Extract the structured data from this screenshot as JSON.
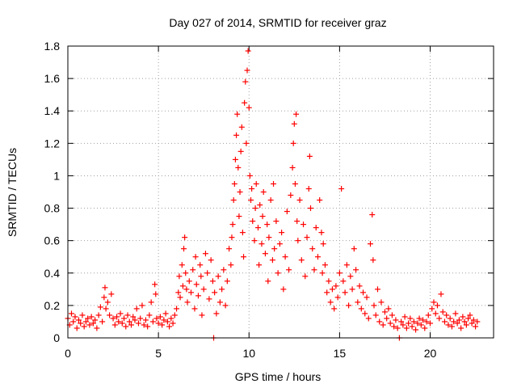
{
  "chart_data": {
    "type": "scatter",
    "title": "Day 027 of 2014, SRMTID for receiver graz",
    "xlabel": "GPS time / hours",
    "ylabel": "SRMTID / TECUs",
    "xlim": [
      0,
      23.5
    ],
    "ylim": [
      0,
      1.8
    ],
    "xticks": [
      0,
      5,
      10,
      15,
      20
    ],
    "xtick_labels": [
      "0",
      "5",
      "10",
      "15",
      "20"
    ],
    "yticks": [
      0,
      0.2,
      0.4,
      0.6,
      0.8,
      1,
      1.2,
      1.4,
      1.6,
      1.8
    ],
    "ytick_labels": [
      "0",
      "0.2",
      "0.4",
      "0.6",
      "0.8",
      "1",
      "1.2",
      "1.4",
      "1.6",
      "1.8"
    ],
    "grid": true,
    "marker": "+",
    "color": "#ff0000",
    "series": [
      {
        "name": "SRMTID",
        "points": [
          [
            0.0,
            0.12
          ],
          [
            0.1,
            0.08
          ],
          [
            0.2,
            0.15
          ],
          [
            0.3,
            0.1
          ],
          [
            0.4,
            0.13
          ],
          [
            0.5,
            0.06
          ],
          [
            0.6,
            0.11
          ],
          [
            0.7,
            0.09
          ],
          [
            0.8,
            0.14
          ],
          [
            0.9,
            0.07
          ],
          [
            1.0,
            0.1
          ],
          [
            1.1,
            0.12
          ],
          [
            1.2,
            0.08
          ],
          [
            1.3,
            0.13
          ],
          [
            1.4,
            0.09
          ],
          [
            1.5,
            0.11
          ],
          [
            1.6,
            0.06
          ],
          [
            1.7,
            0.14
          ],
          [
            1.8,
            0.19
          ],
          [
            1.9,
            0.1
          ],
          [
            2.0,
            0.25
          ],
          [
            2.05,
            0.31
          ],
          [
            2.1,
            0.18
          ],
          [
            2.2,
            0.22
          ],
          [
            2.3,
            0.14
          ],
          [
            2.4,
            0.27
          ],
          [
            2.5,
            0.12
          ],
          [
            2.6,
            0.08
          ],
          [
            2.7,
            0.13
          ],
          [
            2.8,
            0.1
          ],
          [
            2.9,
            0.15
          ],
          [
            3.0,
            0.09
          ],
          [
            3.1,
            0.12
          ],
          [
            3.2,
            0.07
          ],
          [
            3.3,
            0.14
          ],
          [
            3.4,
            0.1
          ],
          [
            3.5,
            0.08
          ],
          [
            3.6,
            0.13
          ],
          [
            3.7,
            0.11
          ],
          [
            3.8,
            0.18
          ],
          [
            3.9,
            0.09
          ],
          [
            4.0,
            0.12
          ],
          [
            4.1,
            0.2
          ],
          [
            4.2,
            0.08
          ],
          [
            4.3,
            0.11
          ],
          [
            4.4,
            0.07
          ],
          [
            4.5,
            0.14
          ],
          [
            4.6,
            0.22
          ],
          [
            4.7,
            0.1
          ],
          [
            4.8,
            0.33
          ],
          [
            4.85,
            0.27
          ],
          [
            4.9,
            0.12
          ],
          [
            5.0,
            0.09
          ],
          [
            5.1,
            0.13
          ],
          [
            5.2,
            0.08
          ],
          [
            5.3,
            0.11
          ],
          [
            5.4,
            0.15
          ],
          [
            5.5,
            0.1
          ],
          [
            5.6,
            0.07
          ],
          [
            5.7,
            0.12
          ],
          [
            5.8,
            0.09
          ],
          [
            5.9,
            0.14
          ],
          [
            6.0,
            0.18
          ],
          [
            6.1,
            0.28
          ],
          [
            6.15,
            0.38
          ],
          [
            6.2,
            0.25
          ],
          [
            6.3,
            0.45
          ],
          [
            6.35,
            0.32
          ],
          [
            6.4,
            0.55
          ],
          [
            6.45,
            0.62
          ],
          [
            6.5,
            0.4
          ],
          [
            6.55,
            0.3
          ],
          [
            6.6,
            0.22
          ],
          [
            6.7,
            0.35
          ],
          [
            6.8,
            0.28
          ],
          [
            6.9,
            0.42
          ],
          [
            7.0,
            0.18
          ],
          [
            7.05,
            0.5
          ],
          [
            7.1,
            0.33
          ],
          [
            7.2,
            0.26
          ],
          [
            7.3,
            0.45
          ],
          [
            7.35,
            0.38
          ],
          [
            7.4,
            0.14
          ],
          [
            7.5,
            0.3
          ],
          [
            7.6,
            0.52
          ],
          [
            7.7,
            0.4
          ],
          [
            7.8,
            0.24
          ],
          [
            7.9,
            0.48
          ],
          [
            8.0,
            0.35
          ],
          [
            8.05,
            0.0
          ],
          [
            8.1,
            0.28
          ],
          [
            8.2,
            0.15
          ],
          [
            8.3,
            0.38
          ],
          [
            8.4,
            0.22
          ],
          [
            8.5,
            0.3
          ],
          [
            8.6,
            0.42
          ],
          [
            8.7,
            0.2
          ],
          [
            8.8,
            0.35
          ],
          [
            8.9,
            0.55
          ],
          [
            9.0,
            0.45
          ],
          [
            9.05,
            0.62
          ],
          [
            9.1,
            0.7
          ],
          [
            9.15,
            0.85
          ],
          [
            9.2,
            0.95
          ],
          [
            9.25,
            1.1
          ],
          [
            9.3,
            1.25
          ],
          [
            9.35,
            1.38
          ],
          [
            9.4,
            1.05
          ],
          [
            9.45,
            0.75
          ],
          [
            9.5,
            0.9
          ],
          [
            9.55,
            1.15
          ],
          [
            9.6,
            1.3
          ],
          [
            9.65,
            0.65
          ],
          [
            9.7,
            0.5
          ],
          [
            9.75,
            1.45
          ],
          [
            9.8,
            1.58
          ],
          [
            9.85,
            1.2
          ],
          [
            9.9,
            1.65
          ],
          [
            9.95,
            1.77
          ],
          [
            10.0,
            1.42
          ],
          [
            10.05,
            1.0
          ],
          [
            10.1,
            0.85
          ],
          [
            10.15,
            0.92
          ],
          [
            10.2,
            0.72
          ],
          [
            10.3,
            0.6
          ],
          [
            10.35,
            0.8
          ],
          [
            10.4,
            0.95
          ],
          [
            10.5,
            0.68
          ],
          [
            10.55,
            0.45
          ],
          [
            10.6,
            0.82
          ],
          [
            10.7,
            0.58
          ],
          [
            10.75,
            0.75
          ],
          [
            10.8,
            0.9
          ],
          [
            10.9,
            0.52
          ],
          [
            11.0,
            0.7
          ],
          [
            11.05,
            0.35
          ],
          [
            11.1,
            0.62
          ],
          [
            11.2,
            0.85
          ],
          [
            11.3,
            0.48
          ],
          [
            11.35,
            0.95
          ],
          [
            11.4,
            0.55
          ],
          [
            11.5,
            0.72
          ],
          [
            11.6,
            0.4
          ],
          [
            11.7,
            0.58
          ],
          [
            11.8,
            0.65
          ],
          [
            11.9,
            0.3
          ],
          [
            12.0,
            0.5
          ],
          [
            12.1,
            0.78
          ],
          [
            12.2,
            0.42
          ],
          [
            12.3,
            0.88
          ],
          [
            12.4,
            1.05
          ],
          [
            12.45,
            1.2
          ],
          [
            12.5,
            1.32
          ],
          [
            12.55,
            0.95
          ],
          [
            12.6,
            1.38
          ],
          [
            12.65,
            0.72
          ],
          [
            12.7,
            0.6
          ],
          [
            12.8,
            0.85
          ],
          [
            12.9,
            0.48
          ],
          [
            13.0,
            0.7
          ],
          [
            13.1,
            0.38
          ],
          [
            13.2,
            0.62
          ],
          [
            13.3,
            0.92
          ],
          [
            13.35,
            1.12
          ],
          [
            13.4,
            0.8
          ],
          [
            13.5,
            0.55
          ],
          [
            13.6,
            0.42
          ],
          [
            13.7,
            0.68
          ],
          [
            13.8,
            0.5
          ],
          [
            13.9,
            0.85
          ],
          [
            14.0,
            0.65
          ],
          [
            14.05,
            0.4
          ],
          [
            14.1,
            0.58
          ],
          [
            14.2,
            0.45
          ],
          [
            14.3,
            0.28
          ],
          [
            14.4,
            0.35
          ],
          [
            14.5,
            0.22
          ],
          [
            14.6,
            0.3
          ],
          [
            14.7,
            0.18
          ],
          [
            14.8,
            0.32
          ],
          [
            14.9,
            0.25
          ],
          [
            15.0,
            0.4
          ],
          [
            15.1,
            0.92
          ],
          [
            15.2,
            0.35
          ],
          [
            15.3,
            0.28
          ],
          [
            15.4,
            0.45
          ],
          [
            15.5,
            0.2
          ],
          [
            15.6,
            0.38
          ],
          [
            15.7,
            0.3
          ],
          [
            15.8,
            0.55
          ],
          [
            15.9,
            0.42
          ],
          [
            16.0,
            0.22
          ],
          [
            16.1,
            0.32
          ],
          [
            16.2,
            0.18
          ],
          [
            16.3,
            0.28
          ],
          [
            16.4,
            0.15
          ],
          [
            16.5,
            0.25
          ],
          [
            16.6,
            0.12
          ],
          [
            16.7,
            0.58
          ],
          [
            16.8,
            0.76
          ],
          [
            16.85,
            0.48
          ],
          [
            16.9,
            0.2
          ],
          [
            17.0,
            0.14
          ],
          [
            17.1,
            0.3
          ],
          [
            17.2,
            0.1
          ],
          [
            17.3,
            0.22
          ],
          [
            17.4,
            0.08
          ],
          [
            17.5,
            0.16
          ],
          [
            17.6,
            0.12
          ],
          [
            17.7,
            0.18
          ],
          [
            17.8,
            0.09
          ],
          [
            17.9,
            0.14
          ],
          [
            18.0,
            0.07
          ],
          [
            18.1,
            0.11
          ],
          [
            18.2,
            0.06
          ],
          [
            18.3,
            0.0
          ],
          [
            18.4,
            0.1
          ],
          [
            18.5,
            0.08
          ],
          [
            18.6,
            0.13
          ],
          [
            18.7,
            0.06
          ],
          [
            18.8,
            0.09
          ],
          [
            18.9,
            0.12
          ],
          [
            19.0,
            0.07
          ],
          [
            19.1,
            0.1
          ],
          [
            19.2,
            0.05
          ],
          [
            19.3,
            0.09
          ],
          [
            19.4,
            0.12
          ],
          [
            19.5,
            0.08
          ],
          [
            19.6,
            0.11
          ],
          [
            19.7,
            0.06
          ],
          [
            19.8,
            0.1
          ],
          [
            19.9,
            0.14
          ],
          [
            20.0,
            0.09
          ],
          [
            20.1,
            0.18
          ],
          [
            20.2,
            0.22
          ],
          [
            20.3,
            0.15
          ],
          [
            20.4,
            0.2
          ],
          [
            20.5,
            0.12
          ],
          [
            20.6,
            0.27
          ],
          [
            20.7,
            0.16
          ],
          [
            20.8,
            0.1
          ],
          [
            20.9,
            0.14
          ],
          [
            21.0,
            0.08
          ],
          [
            21.1,
            0.12
          ],
          [
            21.2,
            0.07
          ],
          [
            21.3,
            0.1
          ],
          [
            21.4,
            0.15
          ],
          [
            21.5,
            0.09
          ],
          [
            21.6,
            0.11
          ],
          [
            21.7,
            0.06
          ],
          [
            21.8,
            0.13
          ],
          [
            21.9,
            0.1
          ],
          [
            22.0,
            0.08
          ],
          [
            22.1,
            0.12
          ],
          [
            22.2,
            0.14
          ],
          [
            22.3,
            0.09
          ],
          [
            22.4,
            0.11
          ],
          [
            22.5,
            0.07
          ],
          [
            22.6,
            0.1
          ]
        ]
      }
    ]
  }
}
